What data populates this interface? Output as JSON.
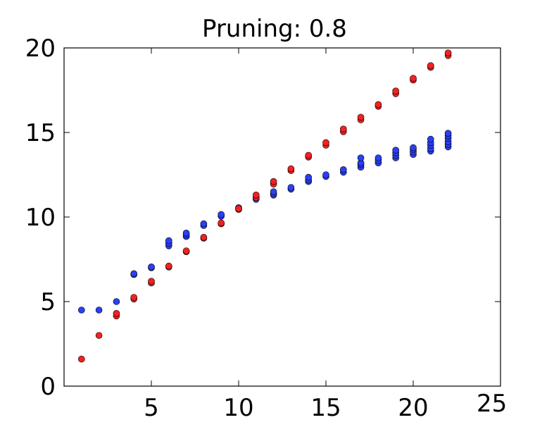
{
  "chart_data": {
    "type": "scatter",
    "title": "Pruning: 0.8",
    "xlabel": "",
    "ylabel": "",
    "xlim": [
      0,
      25
    ],
    "ylim": [
      0,
      20
    ],
    "xticks": [
      "5",
      "10",
      "15",
      "20",
      "25"
    ],
    "yticks": [
      "0",
      "5",
      "10",
      "15",
      "20"
    ],
    "grid": false,
    "legend": "none",
    "series": [
      {
        "color": "#2b3ff5",
        "points": [
          [
            1,
            4.5
          ],
          [
            2,
            4.5
          ],
          [
            3,
            5.0
          ],
          [
            4,
            6.6
          ],
          [
            4,
            6.65
          ],
          [
            5,
            7.0
          ],
          [
            5,
            7.05
          ],
          [
            6,
            8.3
          ],
          [
            6,
            8.45
          ],
          [
            6,
            8.6
          ],
          [
            7,
            8.85
          ],
          [
            7,
            8.95
          ],
          [
            7,
            9.05
          ],
          [
            8,
            9.5
          ],
          [
            8,
            9.6
          ],
          [
            9,
            10.05
          ],
          [
            9,
            10.15
          ],
          [
            10,
            10.5
          ],
          [
            10,
            10.55
          ],
          [
            11,
            11.05
          ],
          [
            11,
            11.15
          ],
          [
            12,
            11.3
          ],
          [
            12,
            11.4
          ],
          [
            12,
            11.5
          ],
          [
            13,
            11.65
          ],
          [
            13,
            11.75
          ],
          [
            14,
            12.1
          ],
          [
            14,
            12.2
          ],
          [
            14,
            12.35
          ],
          [
            15,
            12.4
          ],
          [
            15,
            12.5
          ],
          [
            16,
            12.65
          ],
          [
            16,
            12.8
          ],
          [
            17,
            12.95
          ],
          [
            17,
            13.1
          ],
          [
            17,
            13.2
          ],
          [
            17,
            13.5
          ],
          [
            18,
            13.2
          ],
          [
            18,
            13.35
          ],
          [
            18,
            13.5
          ],
          [
            19,
            13.5
          ],
          [
            19,
            13.65
          ],
          [
            19,
            13.8
          ],
          [
            19,
            13.95
          ],
          [
            20,
            13.7
          ],
          [
            20,
            13.85
          ],
          [
            20,
            14.0
          ],
          [
            20,
            14.1
          ],
          [
            21,
            13.9
          ],
          [
            21,
            14.05
          ],
          [
            21,
            14.25
          ],
          [
            21,
            14.4
          ],
          [
            21,
            14.6
          ],
          [
            22,
            14.15
          ],
          [
            22,
            14.3
          ],
          [
            22,
            14.45
          ],
          [
            22,
            14.65
          ],
          [
            22,
            14.8
          ],
          [
            22,
            14.95
          ]
        ]
      },
      {
        "color": "#f52020",
        "points": [
          [
            1,
            1.6
          ],
          [
            2,
            3.0
          ],
          [
            3,
            4.15
          ],
          [
            3,
            4.3
          ],
          [
            4,
            5.15
          ],
          [
            4,
            5.25
          ],
          [
            5,
            6.1
          ],
          [
            5,
            6.2
          ],
          [
            6,
            7.05
          ],
          [
            6,
            7.1
          ],
          [
            7,
            7.95
          ],
          [
            7,
            8.0
          ],
          [
            8,
            8.75
          ],
          [
            8,
            8.8
          ],
          [
            9,
            9.6
          ],
          [
            9,
            9.65
          ],
          [
            10,
            10.45
          ],
          [
            10,
            10.5
          ],
          [
            11,
            11.15
          ],
          [
            11,
            11.3
          ],
          [
            12,
            11.95
          ],
          [
            12,
            12.1
          ],
          [
            13,
            12.75
          ],
          [
            13,
            12.85
          ],
          [
            14,
            13.55
          ],
          [
            14,
            13.65
          ],
          [
            15,
            14.25
          ],
          [
            15,
            14.4
          ],
          [
            16,
            15.05
          ],
          [
            16,
            15.2
          ],
          [
            17,
            15.75
          ],
          [
            17,
            15.9
          ],
          [
            18,
            16.55
          ],
          [
            18,
            16.65
          ],
          [
            19,
            17.3
          ],
          [
            19,
            17.45
          ],
          [
            20,
            18.1
          ],
          [
            20,
            18.2
          ],
          [
            21,
            18.85
          ],
          [
            21,
            18.95
          ],
          [
            22,
            19.55
          ],
          [
            22,
            19.7
          ]
        ]
      }
    ]
  }
}
